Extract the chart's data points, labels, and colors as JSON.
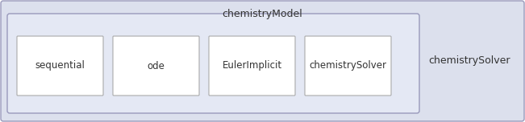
{
  "outer_label": "chemistryModel",
  "outer_bg": "#dce0ed",
  "outer_border": "#9999bb",
  "inner_bg": "#e4e8f4",
  "inner_border": "#9999bb",
  "box_bg": "#ffffff",
  "box_border": "#aaaaaa",
  "boxes": [
    "sequential",
    "ode",
    "EulerImplicit",
    "chemistrySolver"
  ],
  "right_label": "chemistrySolver",
  "fig_width": 6.51,
  "fig_height": 1.52,
  "dpi": 100
}
